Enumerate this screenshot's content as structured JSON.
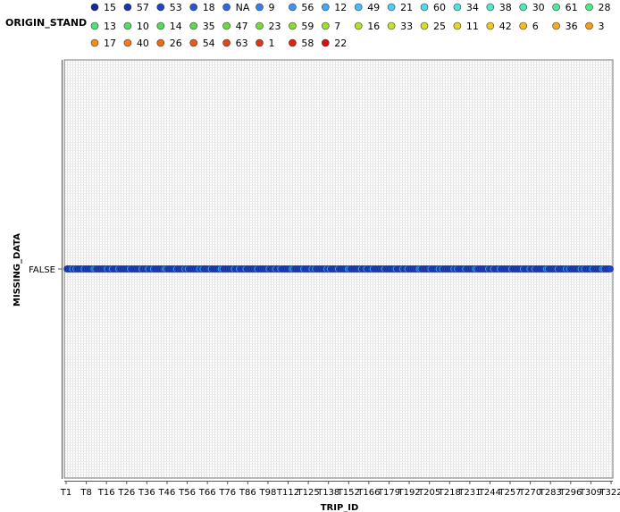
{
  "chart_data": {
    "type": "scatter",
    "legend_title": "ORIGIN_STAND",
    "legend_placement": "top",
    "legend": [
      {
        "label": "15",
        "color": "#1428a0"
      },
      {
        "label": "57",
        "color": "#1a34b4"
      },
      {
        "label": "53",
        "color": "#1e44c8"
      },
      {
        "label": "18",
        "color": "#2356d8"
      },
      {
        "label": "NA",
        "color": "#2a6ae6"
      },
      {
        "label": "9",
        "color": "#3280ee"
      },
      {
        "label": "56",
        "color": "#3a94f4"
      },
      {
        "label": "12",
        "color": "#42a8f8"
      },
      {
        "label": "49",
        "color": "#48bcf8"
      },
      {
        "label": "21",
        "color": "#4ccef4"
      },
      {
        "label": "60",
        "color": "#4edcea"
      },
      {
        "label": "34",
        "color": "#4ee4dc"
      },
      {
        "label": "38",
        "color": "#4ee8c8"
      },
      {
        "label": "30",
        "color": "#4ee8b2"
      },
      {
        "label": "61",
        "color": "#4ee89c"
      },
      {
        "label": "28",
        "color": "#4ee688"
      },
      {
        "label": "13",
        "color": "#50e276"
      },
      {
        "label": "10",
        "color": "#52de66"
      },
      {
        "label": "14",
        "color": "#56da58"
      },
      {
        "label": "35",
        "color": "#5ed84c"
      },
      {
        "label": "47",
        "color": "#6ad842"
      },
      {
        "label": "23",
        "color": "#78da3a"
      },
      {
        "label": "59",
        "color": "#8adc34"
      },
      {
        "label": "7",
        "color": "#9ede30"
      },
      {
        "label": "16",
        "color": "#b2e02c"
      },
      {
        "label": "33",
        "color": "#c6e02a"
      },
      {
        "label": "25",
        "color": "#d8dc28"
      },
      {
        "label": "11",
        "color": "#e6d426"
      },
      {
        "label": "42",
        "color": "#f0c824"
      },
      {
        "label": "6",
        "color": "#f6ba22"
      },
      {
        "label": "36",
        "color": "#f8aa20"
      },
      {
        "label": "3",
        "color": "#f89a1e"
      },
      {
        "label": "17",
        "color": "#f68a1c"
      },
      {
        "label": "40",
        "color": "#f27a1a"
      },
      {
        "label": "26",
        "color": "#ee6a18"
      },
      {
        "label": "54",
        "color": "#ea5816"
      },
      {
        "label": "63",
        "color": "#e64614"
      },
      {
        "label": "1",
        "color": "#e23412"
      },
      {
        "label": "58",
        "color": "#de2210"
      },
      {
        "label": "22",
        "color": "#da120e"
      }
    ],
    "xlabel": "TRIP_ID",
    "ylabel": "MISSING_DATA",
    "y_categories": [
      "FALSE"
    ],
    "x_tick_labels": [
      "T1",
      "T8",
      "T16",
      "T26",
      "T36",
      "T46",
      "T56",
      "T66",
      "T76",
      "T86",
      "T98",
      "T112",
      "T125",
      "T138",
      "T152",
      "T166",
      "T179",
      "T192",
      "T205",
      "T218",
      "T231",
      "T244",
      "T257",
      "T270",
      "T283",
      "T296",
      "T309",
      "T322"
    ],
    "n_points": 330,
    "y_value": "FALSE",
    "point_color_default": "#1e44c8",
    "point_color_highlight": "#3a94f4",
    "grid": true
  }
}
